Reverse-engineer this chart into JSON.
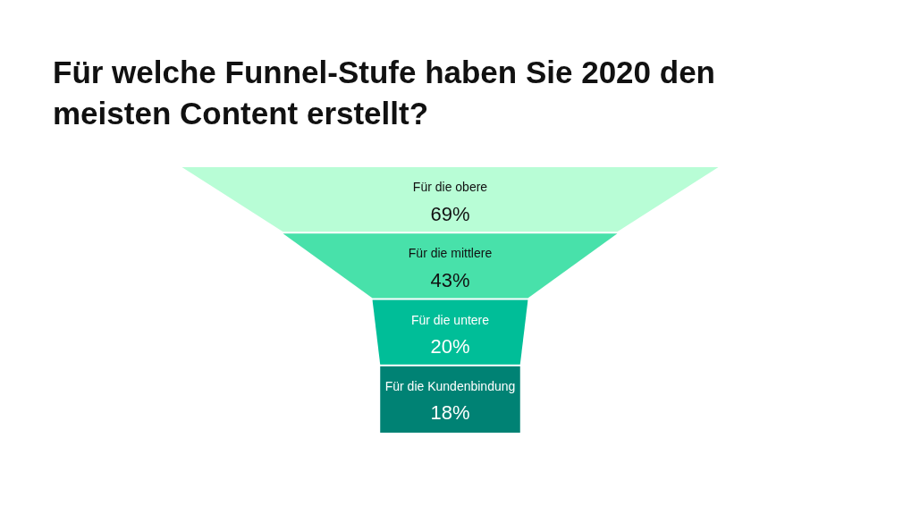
{
  "chart_data": {
    "type": "other",
    "title": "Für welche Funnel-Stufe haben Sie 2020 den meisten Content erstellt?",
    "categories": [
      "Für die obere",
      "Für die mittlere",
      "Für die untere",
      "Für die Kundenbindung"
    ],
    "values": [
      69,
      43,
      20,
      18
    ],
    "value_labels": [
      "69%",
      "43%",
      "20%",
      "18%"
    ],
    "colors": [
      "#b8fdd6",
      "#48e1aa",
      "#00be98",
      "#008274"
    ]
  }
}
